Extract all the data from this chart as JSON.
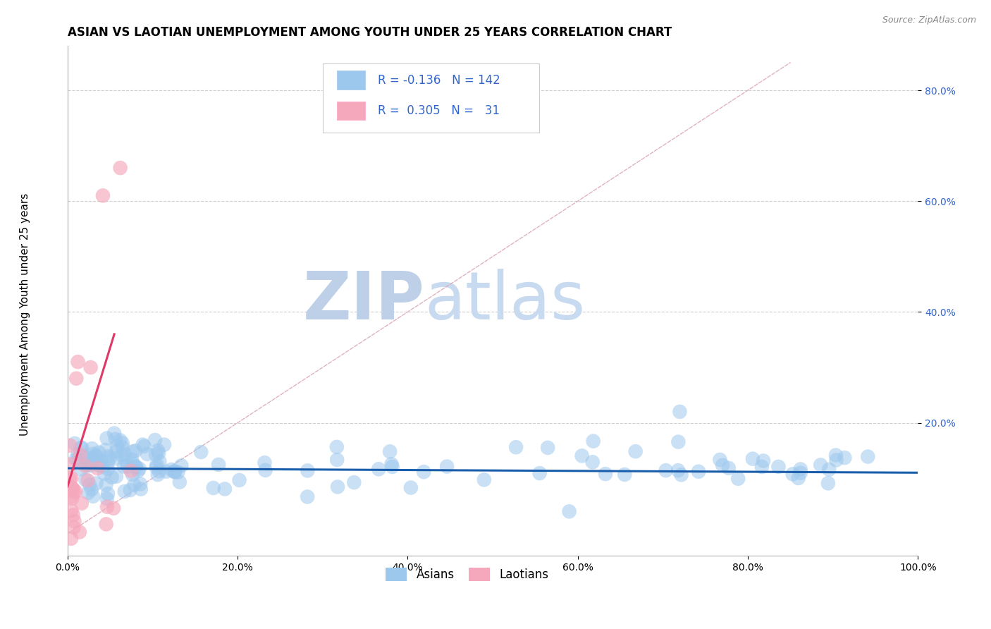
{
  "title": "ASIAN VS LAOTIAN UNEMPLOYMENT AMONG YOUTH UNDER 25 YEARS CORRELATION CHART",
  "source": "Source: ZipAtlas.com",
  "ylabel": "Unemployment Among Youth under 25 years",
  "xlim": [
    0.0,
    1.0
  ],
  "ylim": [
    -0.04,
    0.88
  ],
  "yticks": [
    0.2,
    0.4,
    0.6,
    0.8
  ],
  "ytick_labels": [
    "20.0%",
    "40.0%",
    "60.0%",
    "80.0%"
  ],
  "xticks": [
    0.0,
    0.2,
    0.4,
    0.6,
    0.8,
    1.0
  ],
  "xtick_labels": [
    "0.0%",
    "20.0%",
    "40.0%",
    "60.0%",
    "80.0%",
    "100.0%"
  ],
  "asian_color": "#9DC8EE",
  "laotian_color": "#F5A8BC",
  "asian_line_color": "#1A5EAB",
  "laotian_line_color": "#E03868",
  "diag_line_color": "#DDAABB",
  "legend_R_asian": "-0.136",
  "legend_N_asian": "142",
  "legend_R_laotian": "0.305",
  "legend_N_laotian": "31",
  "legend_label_asian": "Asians",
  "legend_label_laotian": "Laotians",
  "title_fontsize": 12,
  "axis_label_fontsize": 11,
  "tick_fontsize": 10,
  "background_color": "#FFFFFF",
  "grid_color": "#BBBBBB",
  "watermark_zip_color": "#C8D8ED",
  "watermark_atlas_color": "#C8D4E8",
  "legend_text_color": "#3366CC"
}
